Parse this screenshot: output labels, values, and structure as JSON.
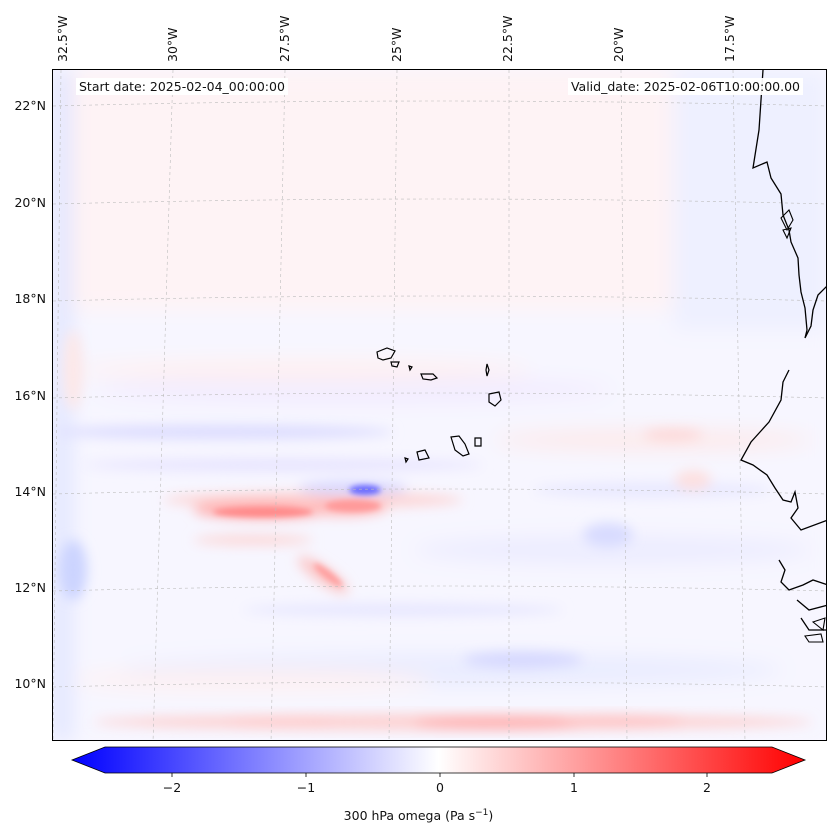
{
  "header": {
    "start_date": "Start date: 2025-02-04_00:00:00",
    "valid_date": "Valid_date: 2025-02-06T10:00:00.00"
  },
  "map": {
    "variable": "300 hPa omega",
    "units": "Pa s",
    "units_exponent": "−1",
    "lon_labels": [
      "32.5°W",
      "30°W",
      "27.5°W",
      "25°W",
      "22.5°W",
      "20°W",
      "17.5°W"
    ],
    "lat_labels": [
      "22°N",
      "20°N",
      "18°N",
      "16°N",
      "14°N",
      "12°N",
      "10°N"
    ],
    "features": [
      "west-african-coastline",
      "cape-verde-islands"
    ]
  },
  "colorbar": {
    "ticks": [
      "−2",
      "−1",
      "0",
      "1",
      "2"
    ],
    "range": [
      -2.5,
      2.5
    ],
    "colors": {
      "negative": "#0000ff",
      "zero": "#ffffff",
      "positive": "#ff0000"
    }
  }
}
